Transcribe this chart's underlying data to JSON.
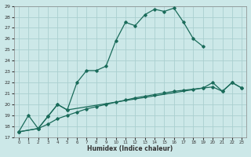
{
  "xlabel": "Humidex (Indice chaleur)",
  "xlim": [
    -0.5,
    23.5
  ],
  "ylim": [
    17,
    29
  ],
  "yticks": [
    17,
    18,
    19,
    20,
    21,
    22,
    23,
    24,
    25,
    26,
    27,
    28,
    29
  ],
  "xticks": [
    0,
    1,
    2,
    3,
    4,
    5,
    6,
    7,
    8,
    9,
    10,
    11,
    12,
    13,
    14,
    15,
    16,
    17,
    18,
    19,
    20,
    21,
    22,
    23
  ],
  "bg_color": "#cce8e8",
  "grid_color": "#aacfcf",
  "line_color": "#1a6b5a",
  "lines": [
    {
      "x": [
        0,
        1,
        2,
        3,
        4,
        5,
        6,
        7,
        8,
        9,
        10,
        11,
        12,
        13,
        14,
        15,
        16,
        17,
        18,
        19
      ],
      "y": [
        17.5,
        19.0,
        17.8,
        18.9,
        20.0,
        19.5,
        22.0,
        23.1,
        23.1,
        23.5,
        25.8,
        27.5,
        27.2,
        28.2,
        28.7,
        28.5,
        28.8,
        27.5,
        26.0,
        25.3
      ]
    },
    {
      "x": [
        0,
        2,
        3,
        4,
        5,
        19,
        20,
        21,
        22,
        23
      ],
      "y": [
        17.5,
        17.8,
        18.9,
        20.0,
        19.5,
        21.5,
        22.0,
        21.2,
        22.0,
        21.5
      ]
    },
    {
      "x": [
        0,
        2,
        3,
        4,
        5,
        6,
        7,
        8,
        9,
        10,
        11,
        12,
        13,
        14,
        15,
        16,
        17,
        18,
        19,
        20,
        21,
        22,
        23
      ],
      "y": [
        17.5,
        17.8,
        18.2,
        18.7,
        19.0,
        19.3,
        19.6,
        19.8,
        20.0,
        20.2,
        20.4,
        20.6,
        20.75,
        20.9,
        21.05,
        21.2,
        21.3,
        21.4,
        21.5,
        21.6,
        21.2,
        22.0,
        21.5
      ]
    }
  ]
}
